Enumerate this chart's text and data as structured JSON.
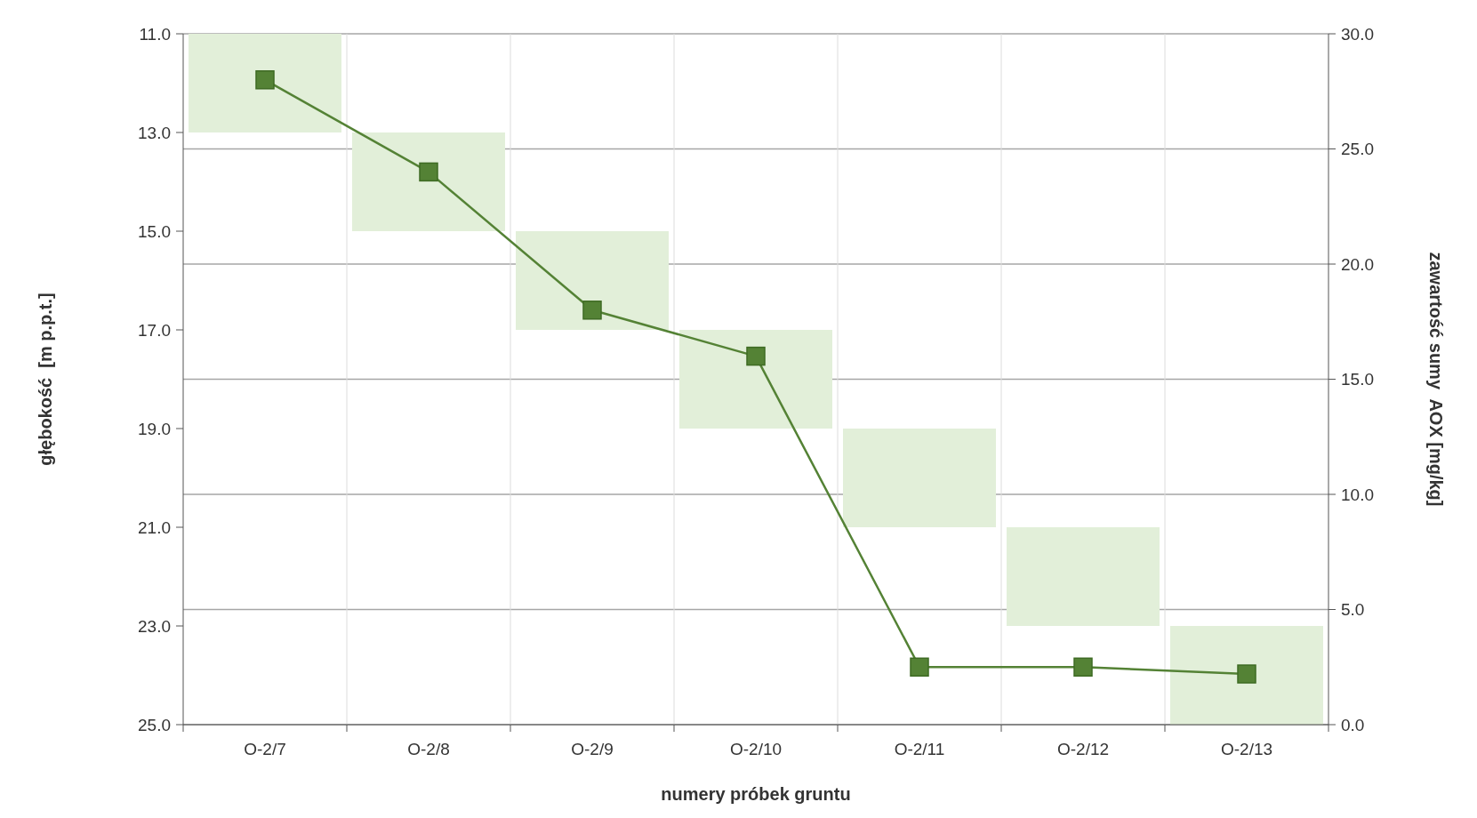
{
  "chart_data": {
    "type": "bar",
    "xlabel": "numery próbek gruntu",
    "ylabel": "głębokość  [m p.p.t.]",
    "y2label": "zawartość sumy  AOX [mg/kg]",
    "categories": [
      "O-2/7",
      "O-2/8",
      "O-2/9",
      "O-2/10",
      "O-2/11",
      "O-2/12",
      "O-2/13"
    ],
    "ylim": [
      25,
      11
    ],
    "yticks": [
      {
        "value": 11,
        "label": "11.0"
      },
      {
        "value": 13,
        "label": "13.0"
      },
      {
        "value": 15,
        "label": "15.0"
      },
      {
        "value": 17,
        "label": "17.0"
      },
      {
        "value": 19,
        "label": "19.0"
      },
      {
        "value": 21,
        "label": "21.0"
      },
      {
        "value": 23,
        "label": "23.0"
      },
      {
        "value": 25,
        "label": "25.0"
      }
    ],
    "y2lim": [
      0,
      30
    ],
    "y2ticks": [
      {
        "value": 0,
        "label": "0.0"
      },
      {
        "value": 5,
        "label": "5.0"
      },
      {
        "value": 10,
        "label": "10.0"
      },
      {
        "value": 15,
        "label": "15.0"
      },
      {
        "value": 20,
        "label": "20.0"
      },
      {
        "value": 25,
        "label": "25.0"
      },
      {
        "value": 30,
        "label": "30.0"
      }
    ],
    "grid": "y2",
    "marker": "square",
    "line_style": "solid",
    "series": [
      {
        "color": "#e2efd9",
        "base": [
          11,
          13,
          15,
          17,
          19,
          21,
          23
        ],
        "values": [
          2,
          2,
          2,
          2,
          2,
          2,
          2
        ]
      },
      {
        "type": "line",
        "axis": "y2",
        "color": "#548235",
        "values": [
          28,
          24,
          18,
          16,
          2.5,
          2.5,
          2.2
        ]
      }
    ]
  }
}
